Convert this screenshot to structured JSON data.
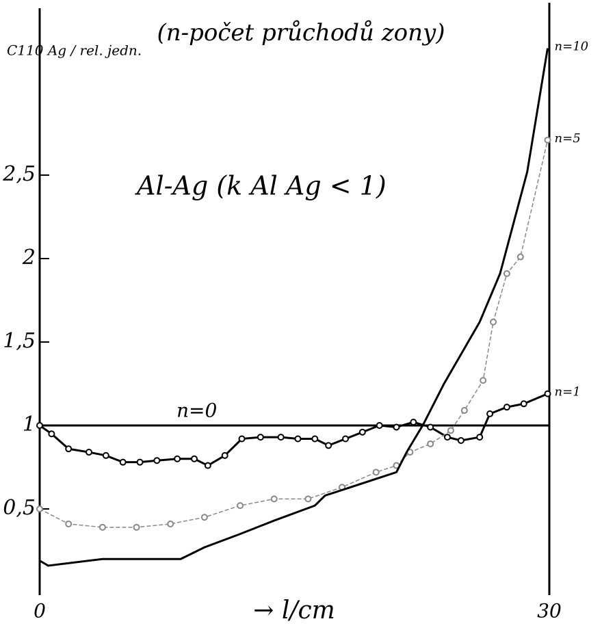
{
  "chart_data": {
    "type": "line",
    "title": "(n-počet průchodů zony)",
    "ylabel": "C110 Ag / rel. jedn.",
    "annotation": "Al-Ag  (k Al Ag < 1)",
    "xlabel": "→ l/cm",
    "xlim": [
      0,
      30
    ],
    "xticks": [
      0,
      30
    ],
    "ylim": [
      0,
      3.5
    ],
    "yticks": [
      {
        "value": 0.5,
        "label": "0,5"
      },
      1,
      {
        "value": 1.5,
        "label": "1,5"
      },
      2,
      {
        "value": 2.5,
        "label": "2,5"
      }
    ],
    "series": [
      {
        "name": "n=0",
        "color": "#000000",
        "markers": false,
        "dashed": false,
        "x": [
          0,
          30
        ],
        "values": [
          1,
          1
        ]
      },
      {
        "name": "n=1",
        "color": "#000000",
        "markers": true,
        "dashed": false,
        "x": [
          0,
          0.7,
          1.7,
          2.9,
          3.9,
          4.9,
          5.9,
          6.9,
          8.1,
          9.1,
          9.9,
          10.9,
          11.9,
          13,
          14.2,
          15.2,
          16.2,
          17,
          18,
          19,
          20,
          21,
          22,
          23,
          24,
          24.8,
          25.9,
          26.5,
          27.5,
          28.5,
          29.9
        ],
        "values": [
          1,
          0.95,
          0.86,
          0.84,
          0.82,
          0.78,
          0.78,
          0.79,
          0.8,
          0.8,
          0.76,
          0.82,
          0.92,
          0.93,
          0.93,
          0.92,
          0.92,
          0.88,
          0.92,
          0.96,
          1,
          0.99,
          1.02,
          0.99,
          0.93,
          0.91,
          0.93,
          1.07,
          1.11,
          1.13,
          1.19
        ]
      },
      {
        "name": "n=5",
        "color": "#888888",
        "markers": true,
        "dashed": true,
        "x": [
          0,
          1.7,
          3.7,
          5.7,
          7.7,
          9.7,
          11.8,
          13.8,
          15.8,
          17.8,
          19.8,
          21,
          21.8,
          23,
          24.2,
          25,
          26.1,
          26.7,
          27.5,
          28.3,
          29.9
        ],
        "values": [
          0.5,
          0.41,
          0.39,
          0.39,
          0.41,
          0.45,
          0.52,
          0.56,
          0.56,
          0.63,
          0.72,
          0.76,
          0.84,
          0.89,
          0.97,
          1.09,
          1.27,
          1.62,
          1.91,
          2.01,
          2.71
        ]
      },
      {
        "name": "n=10",
        "color": "#000000",
        "markers": false,
        "dashed": false,
        "x": [
          0,
          0.5,
          3.7,
          8.3,
          9.7,
          11.8,
          13.8,
          16.2,
          16.8,
          21,
          21.6,
          22.6,
          23.8,
          25.9,
          27.1,
          28.7,
          29.9
        ],
        "values": [
          0.19,
          0.16,
          0.2,
          0.2,
          0.27,
          0.35,
          0.43,
          0.52,
          0.58,
          0.72,
          0.84,
          1.01,
          1.25,
          1.62,
          1.91,
          2.52,
          3.26
        ]
      }
    ]
  }
}
